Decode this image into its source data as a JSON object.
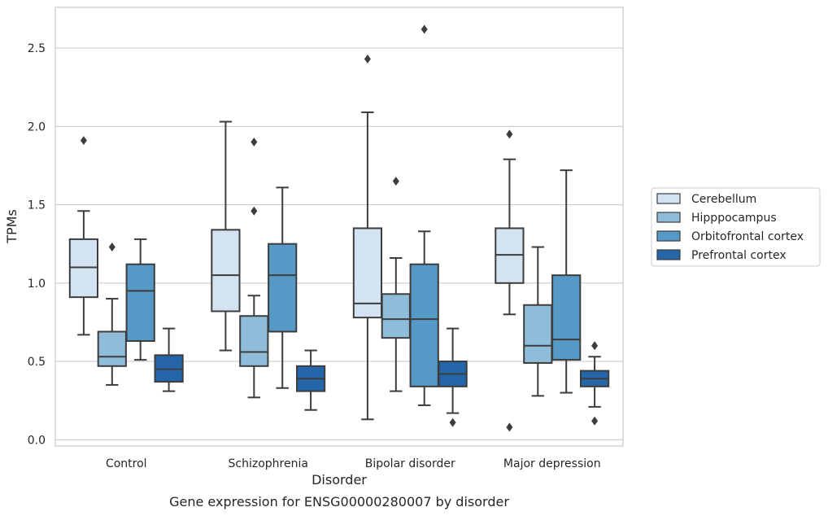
{
  "chart_data": {
    "type": "box",
    "title": "",
    "caption": "Gene expression for ENSG00000280007 by disorder",
    "xlabel": "Disorder",
    "ylabel": "TPMs",
    "categories": [
      "Control",
      "Schizophrenia",
      "Bipolar disorder",
      "Major depression"
    ],
    "ylim": [
      -0.04,
      2.76
    ],
    "yticks": [
      0.0,
      0.5,
      1.0,
      1.5,
      2.0,
      2.5
    ],
    "ytick_labels": [
      "0.0",
      "0.5",
      "1.0",
      "1.5",
      "2.0",
      "2.5"
    ],
    "grid": "horizontal",
    "legend_position": "right",
    "series": [
      {
        "name": "Cerebellum",
        "color": "#d4e3f2",
        "boxes": [
          {
            "whisker_low": 0.67,
            "q1": 0.91,
            "median": 1.1,
            "q3": 1.28,
            "whisker_high": 1.46,
            "outliers": [
              1.91
            ]
          },
          {
            "whisker_low": 0.57,
            "q1": 0.82,
            "median": 1.05,
            "q3": 1.34,
            "whisker_high": 2.03,
            "outliers": []
          },
          {
            "whisker_low": 0.13,
            "q1": 0.78,
            "median": 0.87,
            "q3": 1.35,
            "whisker_high": 2.09,
            "outliers": [
              2.43
            ]
          },
          {
            "whisker_low": 0.8,
            "q1": 1.0,
            "median": 1.18,
            "q3": 1.35,
            "whisker_high": 1.79,
            "outliers": [
              1.95,
              0.08
            ]
          }
        ]
      },
      {
        "name": "Hipppocampus",
        "color": "#8fbdd9",
        "boxes": [
          {
            "whisker_low": 0.35,
            "q1": 0.47,
            "median": 0.53,
            "q3": 0.69,
            "whisker_high": 0.9,
            "outliers": [
              1.23
            ]
          },
          {
            "whisker_low": 0.27,
            "q1": 0.47,
            "median": 0.56,
            "q3": 0.79,
            "whisker_high": 0.92,
            "outliers": [
              1.9,
              1.46
            ]
          },
          {
            "whisker_low": 0.31,
            "q1": 0.65,
            "median": 0.77,
            "q3": 0.93,
            "whisker_high": 1.16,
            "outliers": [
              1.65
            ]
          },
          {
            "whisker_low": 0.28,
            "q1": 0.49,
            "median": 0.6,
            "q3": 0.86,
            "whisker_high": 1.23,
            "outliers": []
          }
        ]
      },
      {
        "name": "Orbitofrontal cortex",
        "color": "#5599c6",
        "boxes": [
          {
            "whisker_low": 0.51,
            "q1": 0.63,
            "median": 0.95,
            "q3": 1.12,
            "whisker_high": 1.28,
            "outliers": []
          },
          {
            "whisker_low": 0.33,
            "q1": 0.69,
            "median": 1.05,
            "q3": 1.25,
            "whisker_high": 1.61,
            "outliers": []
          },
          {
            "whisker_low": 0.22,
            "q1": 0.34,
            "median": 0.77,
            "q3": 1.12,
            "whisker_high": 1.33,
            "outliers": [
              2.62
            ]
          },
          {
            "whisker_low": 0.3,
            "q1": 0.51,
            "median": 0.64,
            "q3": 1.05,
            "whisker_high": 1.72,
            "outliers": []
          }
        ]
      },
      {
        "name": "Prefrontal cortex",
        "color": "#2466a9",
        "boxes": [
          {
            "whisker_low": 0.31,
            "q1": 0.37,
            "median": 0.45,
            "q3": 0.54,
            "whisker_high": 0.71,
            "outliers": []
          },
          {
            "whisker_low": 0.19,
            "q1": 0.31,
            "median": 0.39,
            "q3": 0.47,
            "whisker_high": 0.57,
            "outliers": []
          },
          {
            "whisker_low": 0.17,
            "q1": 0.34,
            "median": 0.42,
            "q3": 0.5,
            "whisker_high": 0.71,
            "outliers": [
              0.11
            ]
          },
          {
            "whisker_low": 0.21,
            "q1": 0.34,
            "median": 0.39,
            "q3": 0.44,
            "whisker_high": 0.53,
            "outliers": [
              0.6,
              0.12
            ]
          }
        ]
      }
    ]
  }
}
